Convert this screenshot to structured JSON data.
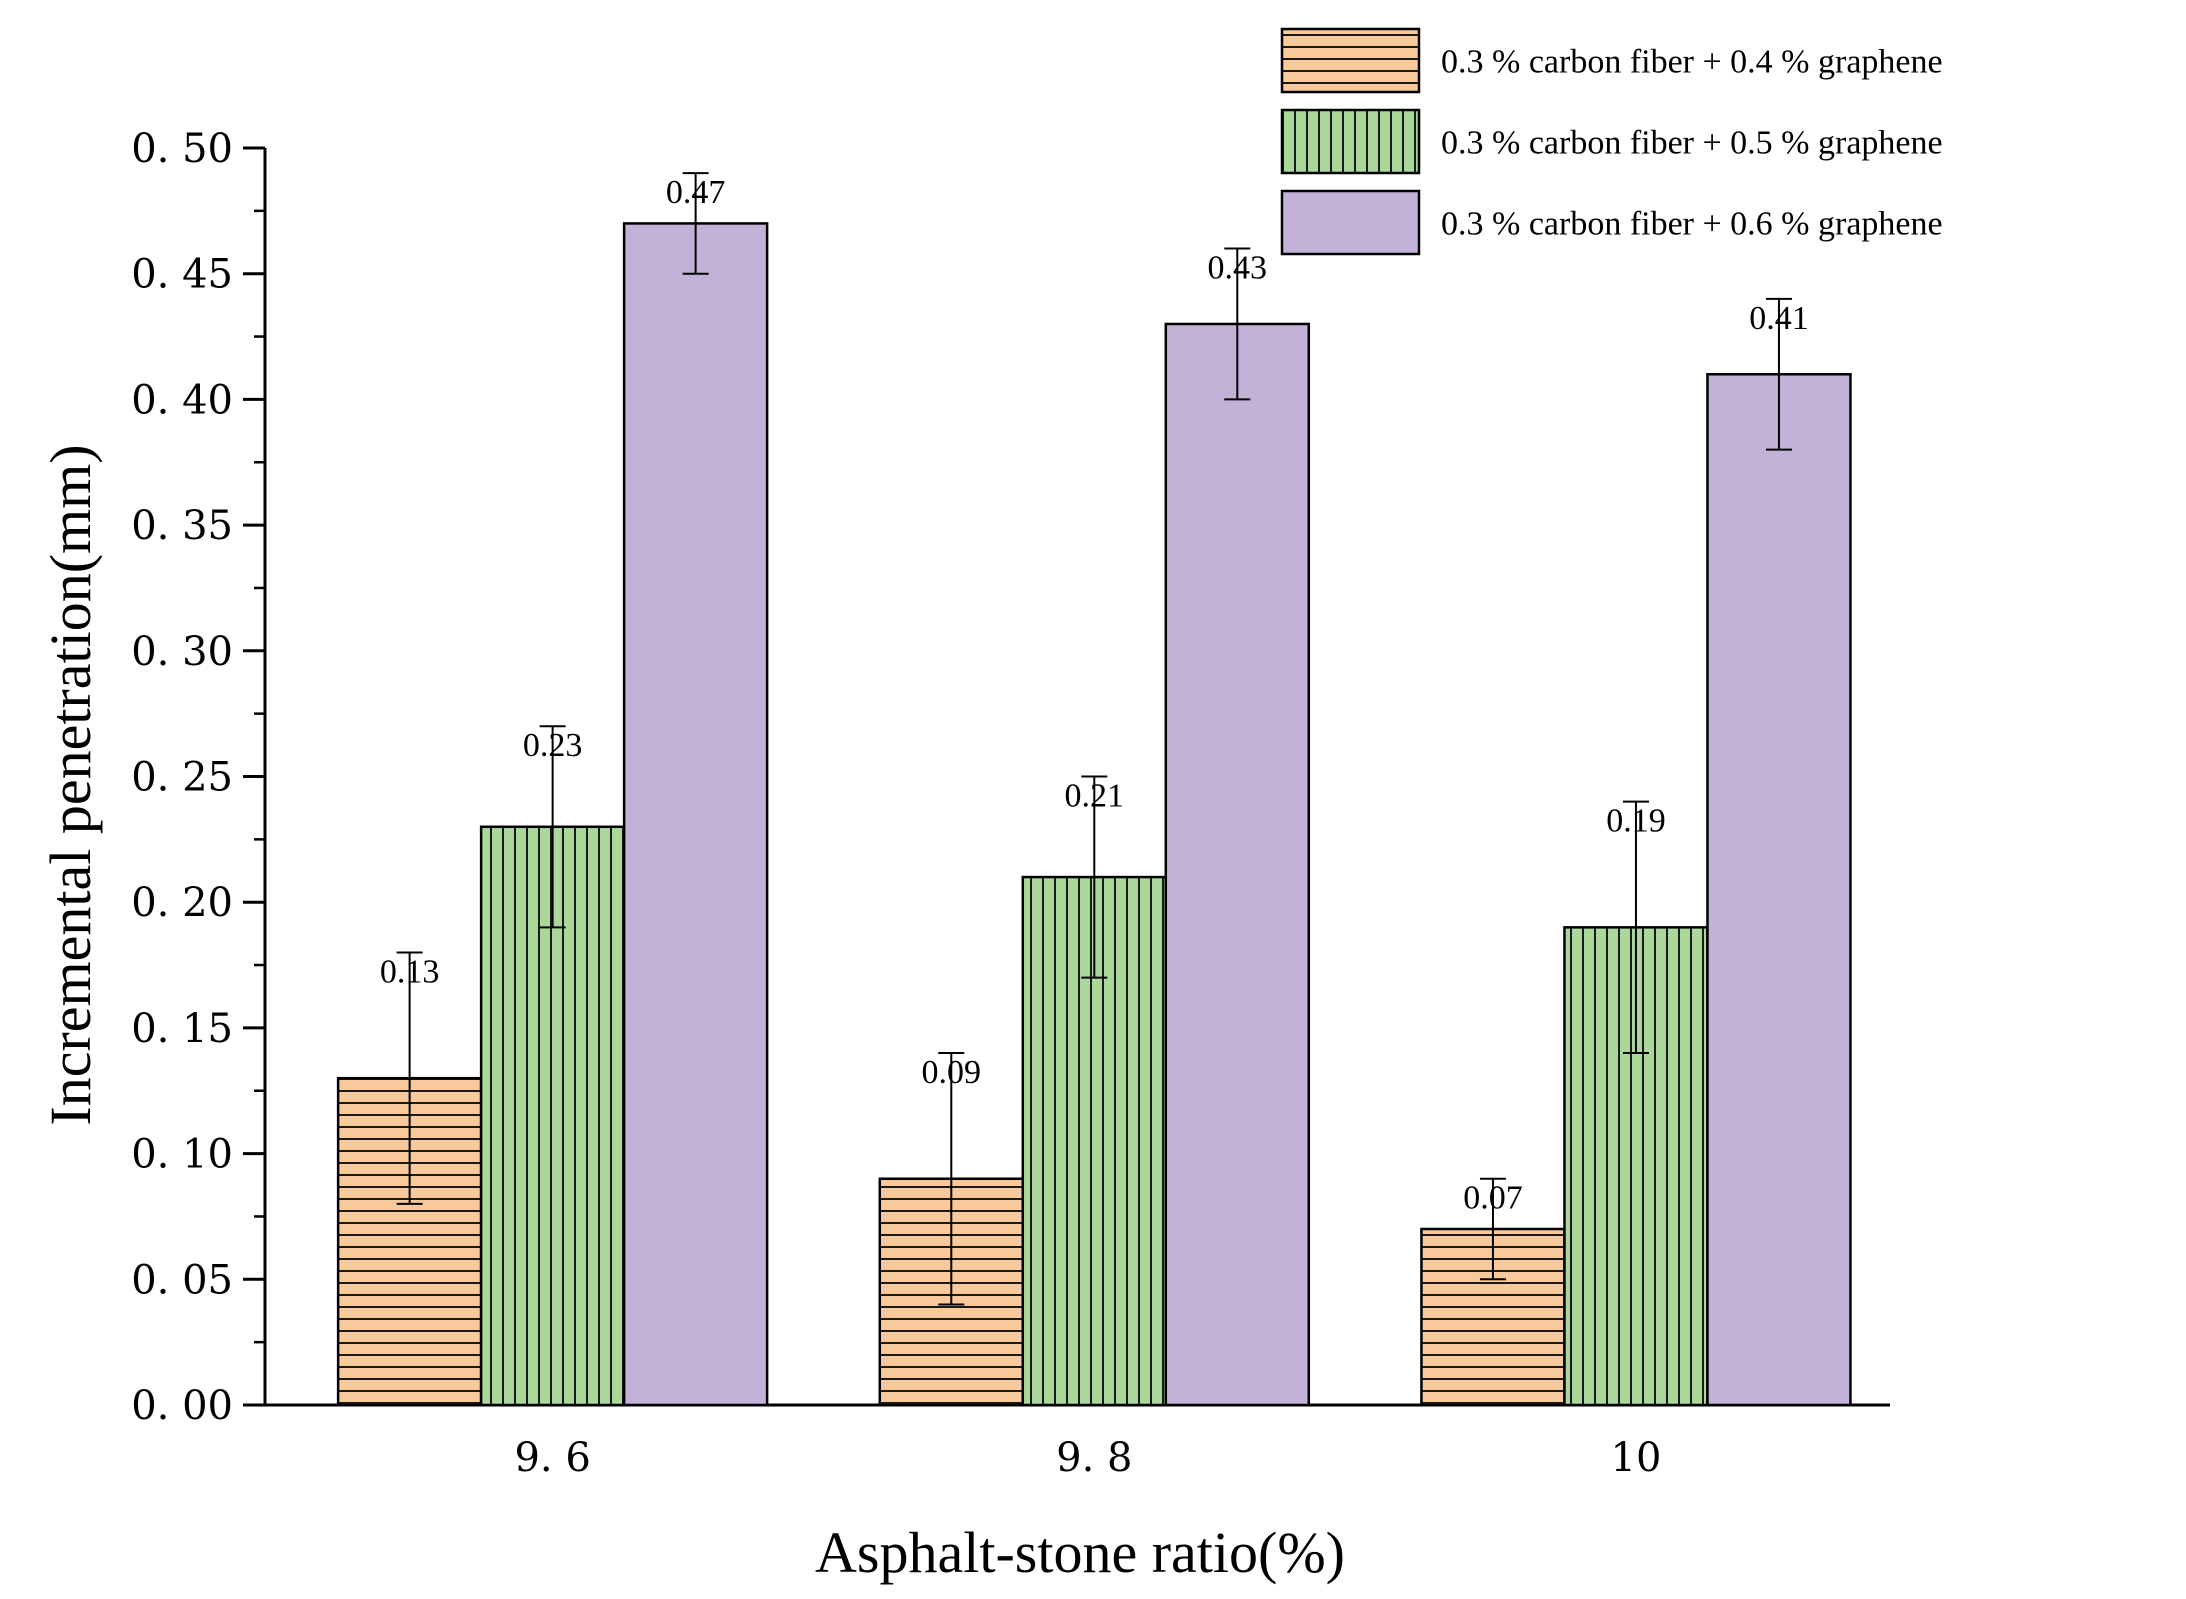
{
  "chart_data": {
    "type": "bar",
    "title": "",
    "xlabel": "Asphalt-stone ratio(%)",
    "ylabel": "Incremental penetration(mm)",
    "categories": [
      "9. 6",
      "9. 8",
      "10"
    ],
    "ylim": [
      0,
      0.5
    ],
    "yticks": [
      "0. 00",
      "0. 05",
      "0. 10",
      "0. 15",
      "0. 20",
      "0. 25",
      "0. 30",
      "0. 35",
      "0. 40",
      "0. 45",
      "0. 50"
    ],
    "legend_position": "top-right",
    "grid": false,
    "series": [
      {
        "name": "0.3 % carbon fiber + 0.4 % graphene",
        "values": [
          0.13,
          0.09,
          0.07
        ],
        "labels": [
          "0.13",
          "0.09",
          "0.07"
        ],
        "error": [
          0.05,
          0.05,
          0.02
        ],
        "color": "#F8C99B",
        "pattern": "horizontal-lines"
      },
      {
        "name": "0.3 % carbon fiber + 0.5 % graphene",
        "values": [
          0.23,
          0.21,
          0.19
        ],
        "labels": [
          "0.23",
          "0.21",
          "0.19"
        ],
        "error": [
          0.04,
          0.04,
          0.05
        ],
        "color": "#A9D89A",
        "pattern": "vertical-lines"
      },
      {
        "name": "0.3 % carbon fiber + 0.6 % graphene",
        "values": [
          0.47,
          0.43,
          0.41
        ],
        "labels": [
          "0.47",
          "0.43",
          "0.41"
        ],
        "error": [
          0.02,
          0.03,
          0.03
        ],
        "color": "#C2B2D8",
        "pattern": "solid"
      }
    ]
  }
}
